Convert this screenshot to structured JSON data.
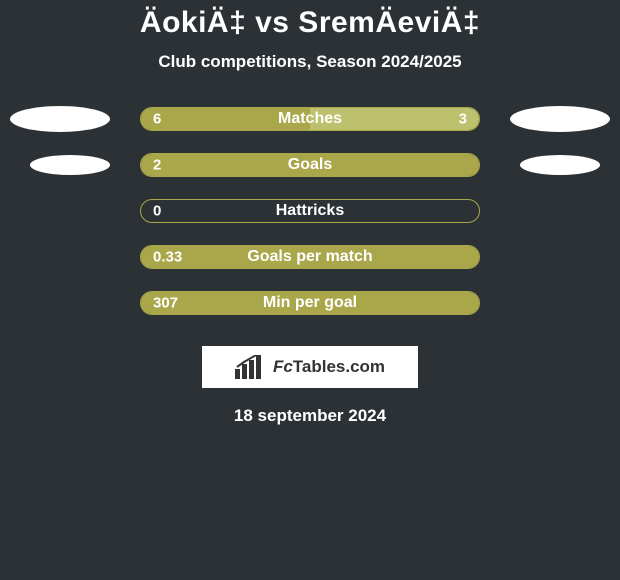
{
  "background_color": "#2c3135",
  "text_color": "#ffffff",
  "title": "ÄokiÄ‡ vs SremÄeviÄ‡",
  "title_fontsize": 30,
  "subtitle": "Club competitions, Season 2024/2025",
  "subtitle_fontsize": 17,
  "bar": {
    "track_color": "#2c3135",
    "track_border_color": "#a9a74a",
    "track_border_width": 1,
    "left_color": "#a9a74a",
    "right_color": "#bdc06c",
    "label_color": "#ffffff",
    "label_fontsize": 16,
    "value_fontsize": 15
  },
  "rows": [
    {
      "label": "Matches",
      "left_val": "6",
      "right_val": "3",
      "left_pct": 50,
      "right_pct": 50,
      "show_left_ellipse": true,
      "show_right_ellipse": true,
      "ellipse_size": "big"
    },
    {
      "label": "Goals",
      "left_val": "2",
      "right_val": "",
      "left_pct": 100,
      "right_pct": 0,
      "show_left_ellipse": true,
      "show_right_ellipse": true,
      "ellipse_size": "small"
    },
    {
      "label": "Hattricks",
      "left_val": "0",
      "right_val": "",
      "left_pct": 0,
      "right_pct": 0,
      "show_left_ellipse": false,
      "show_right_ellipse": false
    },
    {
      "label": "Goals per match",
      "left_val": "0.33",
      "right_val": "",
      "left_pct": 100,
      "right_pct": 0,
      "show_left_ellipse": false,
      "show_right_ellipse": false
    },
    {
      "label": "Min per goal",
      "left_val": "307",
      "right_val": "",
      "left_pct": 100,
      "right_pct": 0,
      "show_left_ellipse": false,
      "show_right_ellipse": false
    }
  ],
  "logo_text_a": "Fc",
  "logo_text_b": "Tables.com",
  "date": "18 september 2024",
  "date_fontsize": 17
}
